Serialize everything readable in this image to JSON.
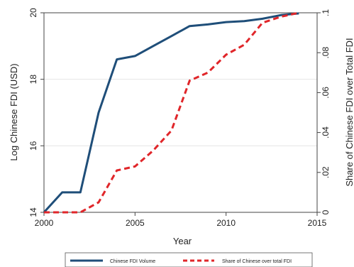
{
  "chart_data": {
    "type": "line",
    "xlabel": "Year",
    "ylabel_left": "Log Chinese FDI (USD)",
    "ylabel_right": "Share of Chinese FDI over Total FDI",
    "xlim": [
      2000,
      2015
    ],
    "ylim_left": [
      14,
      20
    ],
    "ylim_right": [
      0,
      0.1
    ],
    "x_ticks": [
      {
        "value": 2000,
        "label": "2000"
      },
      {
        "value": 2005,
        "label": "2005"
      },
      {
        "value": 2010,
        "label": "2010"
      },
      {
        "value": 2015,
        "label": "2015"
      }
    ],
    "y_ticks_left": [
      {
        "value": 14,
        "label": "14"
      },
      {
        "value": 16,
        "label": "16"
      },
      {
        "value": 18,
        "label": "18"
      },
      {
        "value": 20,
        "label": "20"
      }
    ],
    "y_ticks_right": [
      {
        "value": 0,
        "label": "0"
      },
      {
        "value": 0.02,
        "label": ".02"
      },
      {
        "value": 0.04,
        "label": ".04"
      },
      {
        "value": 0.06,
        "label": ".06"
      },
      {
        "value": 0.08,
        "label": ".08"
      },
      {
        "value": 0.1,
        "label": ".1"
      }
    ],
    "grid": "horizontal",
    "legend_position": "bottom",
    "series": [
      {
        "name": "Chinese FDI Volume",
        "axis": "left",
        "style": "solid",
        "color": "#1f4e79",
        "x": [
          2000,
          2001,
          2002,
          2003,
          2004,
          2005,
          2006,
          2007,
          2008,
          2009,
          2010,
          2011,
          2012,
          2013,
          2014
        ],
        "y": [
          14.0,
          14.6,
          14.6,
          17.0,
          18.6,
          18.7,
          19.0,
          19.3,
          19.6,
          19.65,
          19.72,
          19.75,
          19.82,
          19.93,
          19.98
        ]
      },
      {
        "name": "Share of Chinese over total FDI",
        "axis": "right",
        "style": "dashed",
        "color": "#e0262a",
        "x": [
          2000,
          2001,
          2002,
          2003,
          2004,
          2005,
          2006,
          2007,
          2008,
          2009,
          2010,
          2011,
          2012,
          2013,
          2014
        ],
        "y": [
          0.0,
          0.0,
          0.0,
          0.005,
          0.021,
          0.023,
          0.031,
          0.041,
          0.066,
          0.07,
          0.079,
          0.084,
          0.095,
          0.098,
          0.1
        ]
      }
    ]
  }
}
